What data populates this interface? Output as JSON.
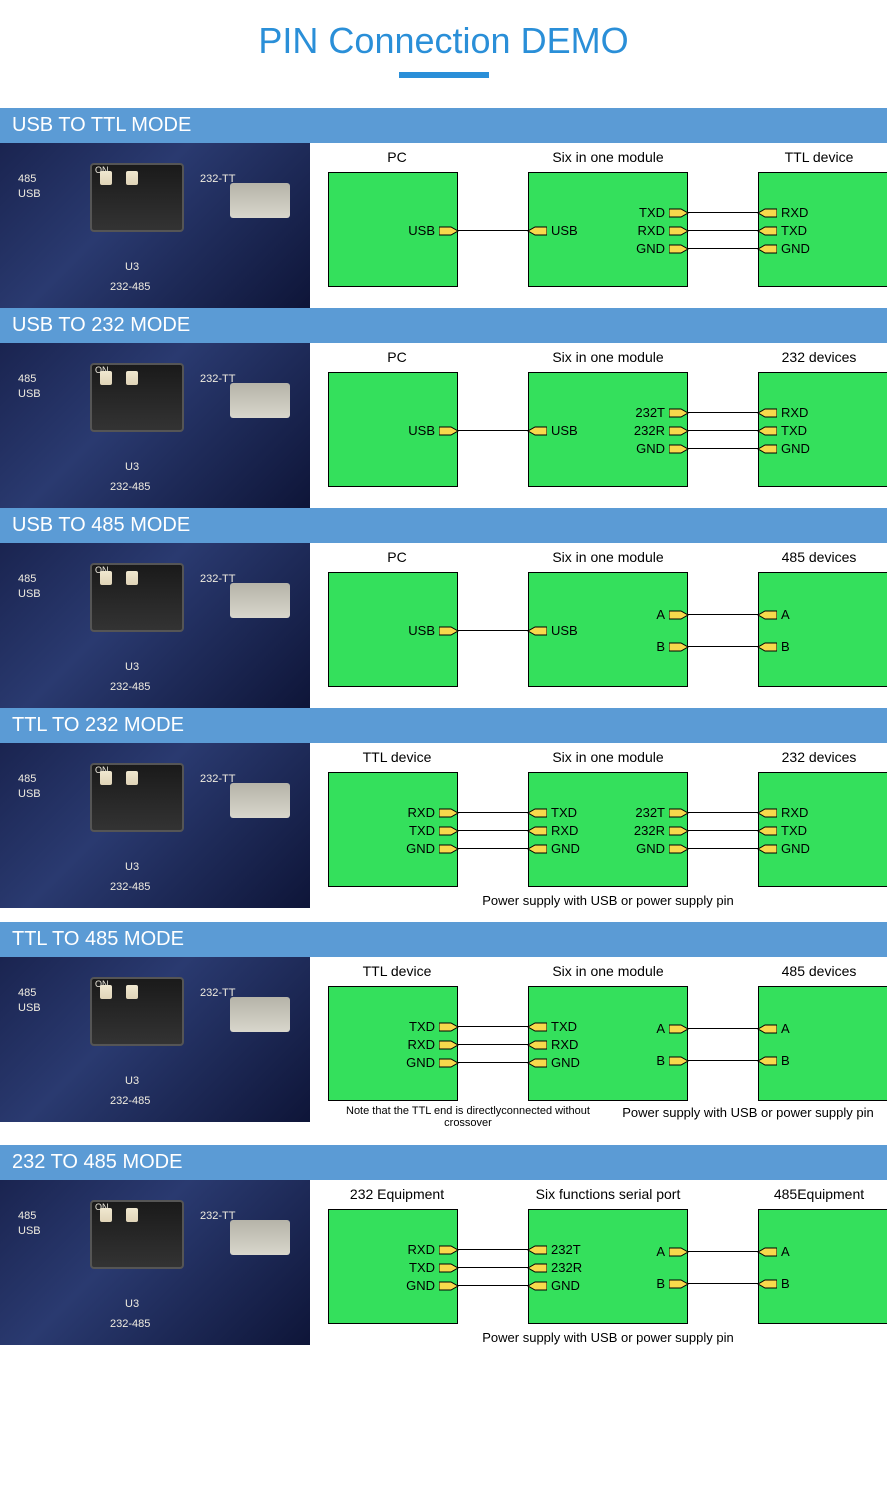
{
  "title": "PIN Connection DEMO",
  "colors": {
    "accent": "#2a8fd8",
    "header_bg": "#5b9bd5",
    "box_fill": "#34e05c",
    "pin_fill": "#f7d94c"
  },
  "pcb_labels": {
    "tl": "485",
    "tl2": "USB",
    "tr": "232-TT",
    "bl": "U3",
    "br": "232-485",
    "dip_on": "ON",
    "dip_n1": "1",
    "dip_n2": "2"
  },
  "modes": [
    {
      "header": "USB TO TTL MODE",
      "labels": [
        "PC",
        "Six in one module",
        "TTL device"
      ],
      "left": {
        "right_pins": [
          {
            "y": 58,
            "txt": "USB",
            "side": "r"
          }
        ]
      },
      "mid": {
        "left_pins": [
          {
            "y": 58,
            "txt": "USB",
            "side": "l"
          }
        ],
        "right_pins": [
          {
            "y": 40,
            "txt": "TXD",
            "side": "r"
          },
          {
            "y": 58,
            "txt": "RXD",
            "side": "r"
          },
          {
            "y": 76,
            "txt": "GND",
            "side": "r"
          }
        ]
      },
      "right": {
        "left_pins": [
          {
            "y": 40,
            "txt": "RXD",
            "side": "l"
          },
          {
            "y": 58,
            "txt": "TXD",
            "side": "l"
          },
          {
            "y": 76,
            "txt": "GND",
            "side": "l"
          }
        ]
      },
      "wires_g1": [
        {
          "y": 58
        }
      ],
      "wires_g2": [
        {
          "y": 40
        },
        {
          "y": 58
        },
        {
          "y": 76
        }
      ],
      "footnote": ""
    },
    {
      "header": "USB TO 232 MODE",
      "labels": [
        "PC",
        "Six in one module",
        "232 devices"
      ],
      "left": {
        "right_pins": [
          {
            "y": 58,
            "txt": "USB",
            "side": "r"
          }
        ]
      },
      "mid": {
        "left_pins": [
          {
            "y": 58,
            "txt": "USB",
            "side": "l"
          }
        ],
        "right_pins": [
          {
            "y": 40,
            "txt": "232T",
            "side": "r"
          },
          {
            "y": 58,
            "txt": "232R",
            "side": "r"
          },
          {
            "y": 76,
            "txt": "GND",
            "side": "r"
          }
        ]
      },
      "right": {
        "left_pins": [
          {
            "y": 40,
            "txt": "RXD",
            "side": "l"
          },
          {
            "y": 58,
            "txt": "TXD",
            "side": "l"
          },
          {
            "y": 76,
            "txt": "GND",
            "side": "l"
          }
        ]
      },
      "wires_g1": [
        {
          "y": 58
        }
      ],
      "wires_g2": [
        {
          "y": 40
        },
        {
          "y": 58
        },
        {
          "y": 76
        }
      ],
      "footnote": ""
    },
    {
      "header": "USB TO 485 MODE",
      "labels": [
        "PC",
        "Six in one module",
        "485 devices"
      ],
      "left": {
        "right_pins": [
          {
            "y": 58,
            "txt": "USB",
            "side": "r"
          }
        ]
      },
      "mid": {
        "left_pins": [
          {
            "y": 58,
            "txt": "USB",
            "side": "l"
          }
        ],
        "right_pins": [
          {
            "y": 42,
            "txt": "A",
            "side": "r"
          },
          {
            "y": 74,
            "txt": "B",
            "side": "r"
          }
        ]
      },
      "right": {
        "left_pins": [
          {
            "y": 42,
            "txt": "A",
            "side": "l"
          },
          {
            "y": 74,
            "txt": "B",
            "side": "l"
          }
        ]
      },
      "wires_g1": [
        {
          "y": 58
        }
      ],
      "wires_g2": [
        {
          "y": 42
        },
        {
          "y": 74
        }
      ],
      "footnote": ""
    },
    {
      "header": "TTL TO 232 MODE",
      "labels": [
        "TTL device",
        "Six in one module",
        "232 devices"
      ],
      "left": {
        "right_pins": [
          {
            "y": 40,
            "txt": "RXD",
            "side": "r"
          },
          {
            "y": 58,
            "txt": "TXD",
            "side": "r"
          },
          {
            "y": 76,
            "txt": "GND",
            "side": "r"
          }
        ]
      },
      "mid": {
        "left_pins": [
          {
            "y": 40,
            "txt": "TXD",
            "side": "l"
          },
          {
            "y": 58,
            "txt": "RXD",
            "side": "l"
          },
          {
            "y": 76,
            "txt": "GND",
            "side": "l"
          }
        ],
        "right_pins": [
          {
            "y": 40,
            "txt": "232T",
            "side": "r"
          },
          {
            "y": 58,
            "txt": "232R",
            "side": "r"
          },
          {
            "y": 76,
            "txt": "GND",
            "side": "r"
          }
        ]
      },
      "right": {
        "left_pins": [
          {
            "y": 40,
            "txt": "RXD",
            "side": "l"
          },
          {
            "y": 58,
            "txt": "TXD",
            "side": "l"
          },
          {
            "y": 76,
            "txt": "GND",
            "side": "l"
          }
        ]
      },
      "wires_g1": [
        {
          "y": 40
        },
        {
          "y": 58
        },
        {
          "y": 76
        }
      ],
      "wires_g2": [
        {
          "y": 40
        },
        {
          "y": 58
        },
        {
          "y": 76
        }
      ],
      "footnote": "Power supply with USB or power supply pin"
    },
    {
      "header": "TTL TO 485 MODE",
      "labels": [
        "TTL device",
        "Six in one module",
        "485 devices"
      ],
      "left": {
        "right_pins": [
          {
            "y": 40,
            "txt": "TXD",
            "side": "r"
          },
          {
            "y": 58,
            "txt": "RXD",
            "side": "r"
          },
          {
            "y": 76,
            "txt": "GND",
            "side": "r"
          }
        ]
      },
      "mid": {
        "left_pins": [
          {
            "y": 40,
            "txt": "TXD",
            "side": "l"
          },
          {
            "y": 58,
            "txt": "RXD",
            "side": "l"
          },
          {
            "y": 76,
            "txt": "GND",
            "side": "l"
          }
        ],
        "right_pins": [
          {
            "y": 42,
            "txt": "A",
            "side": "r"
          },
          {
            "y": 74,
            "txt": "B",
            "side": "r"
          }
        ]
      },
      "right": {
        "left_pins": [
          {
            "y": 42,
            "txt": "A",
            "side": "l"
          },
          {
            "y": 74,
            "txt": "B",
            "side": "l"
          }
        ]
      },
      "wires_g1": [
        {
          "y": 40
        },
        {
          "y": 58
        },
        {
          "y": 76
        }
      ],
      "wires_g2": [
        {
          "y": 42
        },
        {
          "y": 74
        }
      ],
      "footnote_split": [
        "Note that the TTL end is directlyconnected without crossover",
        "Power supply with USB or power supply pin"
      ]
    },
    {
      "header": "232 TO 485 MODE",
      "labels": [
        "232 Equipment",
        "Six functions serial port",
        "485Equipment"
      ],
      "left": {
        "right_pins": [
          {
            "y": 40,
            "txt": "RXD",
            "side": "r"
          },
          {
            "y": 58,
            "txt": "TXD",
            "side": "r"
          },
          {
            "y": 76,
            "txt": "GND",
            "side": "r"
          }
        ]
      },
      "mid": {
        "left_pins": [
          {
            "y": 40,
            "txt": "232T",
            "side": "l"
          },
          {
            "y": 58,
            "txt": "232R",
            "side": "l"
          },
          {
            "y": 76,
            "txt": "GND",
            "side": "l"
          }
        ],
        "right_pins": [
          {
            "y": 42,
            "txt": "A",
            "side": "r"
          },
          {
            "y": 74,
            "txt": "B",
            "side": "r"
          }
        ]
      },
      "right": {
        "left_pins": [
          {
            "y": 42,
            "txt": "A",
            "side": "l"
          },
          {
            "y": 74,
            "txt": "B",
            "side": "l"
          }
        ]
      },
      "wires_g1": [
        {
          "y": 40
        },
        {
          "y": 58
        },
        {
          "y": 76
        }
      ],
      "wires_g2": [
        {
          "y": 42
        },
        {
          "y": 74
        }
      ],
      "footnote": "Power supply with USB or power supply pin"
    }
  ]
}
